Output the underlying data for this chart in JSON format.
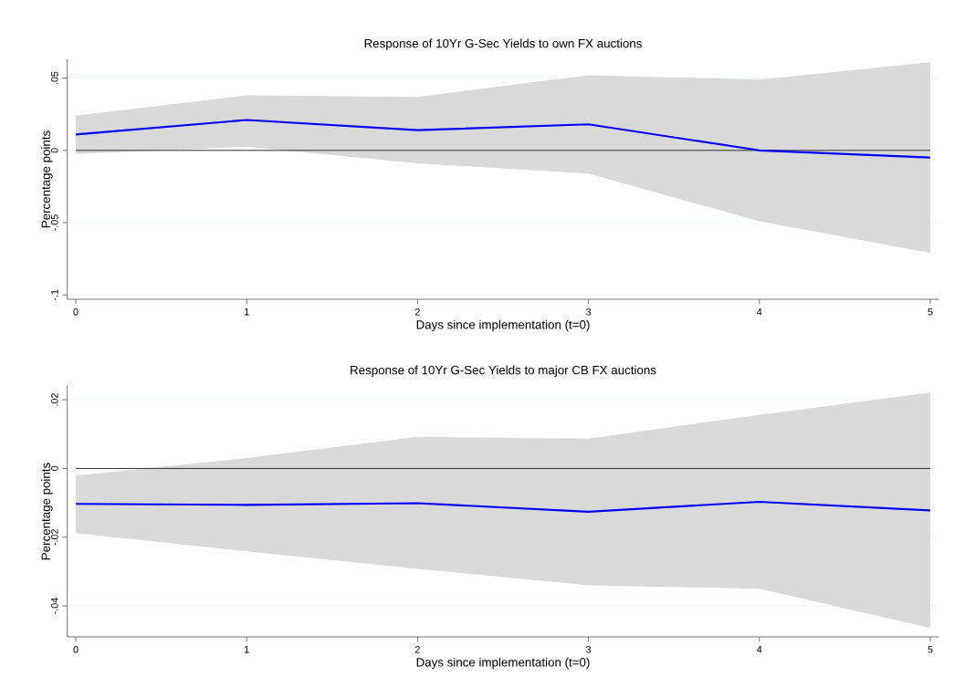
{
  "chart_data": [
    {
      "type": "line",
      "title": "Response of 10Yr G-Sec Yields to own FX auctions",
      "xlabel": "Days since implementation (t=0)",
      "ylabel": "Percentage points",
      "x": [
        0,
        1,
        2,
        3,
        4,
        5
      ],
      "xlim": [
        -0.05,
        5.05
      ],
      "xticks": [
        0,
        1,
        2,
        3,
        4,
        5
      ],
      "ylim": [
        -0.103,
        0.063
      ],
      "yticks": [
        {
          "value": -0.1,
          "label": "-.1"
        },
        {
          "value": -0.05,
          "label": "-.05"
        },
        0,
        {
          "value": 0.05,
          "label": ".05"
        }
      ],
      "grid": "y",
      "series": [
        {
          "color": "#0000ff",
          "values": [
            0.011,
            0.021,
            0.014,
            0.018,
            0.0,
            -0.005
          ],
          "lower": [
            -0.0025,
            0.0025,
            -0.009,
            -0.016,
            -0.049,
            -0.071
          ],
          "upper": [
            0.024,
            0.038,
            0.037,
            0.052,
            0.049,
            0.061
          ]
        }
      ],
      "ref_lines": [
        {
          "axis": "y",
          "value": 0,
          "color": "#000000"
        }
      ]
    },
    {
      "type": "line",
      "title": "Response of 10Yr G-Sec Yields to major CB FX auctions",
      "xlabel": "Days since implementation (t=0)",
      "ylabel": "Percentage points",
      "x": [
        0,
        1,
        2,
        3,
        4,
        5
      ],
      "xlim": [
        -0.05,
        5.05
      ],
      "xticks": [
        0,
        1,
        2,
        3,
        4,
        5
      ],
      "ylim": [
        -0.049,
        0.024
      ],
      "yticks": [
        {
          "value": -0.04,
          "label": "-.04"
        },
        {
          "value": -0.02,
          "label": "-.02"
        },
        0,
        {
          "value": 0.02,
          "label": ".02"
        }
      ],
      "grid": "y",
      "series": [
        {
          "color": "#0000ff",
          "values": [
            -0.0103,
            -0.0106,
            -0.0101,
            -0.0126,
            -0.0097,
            -0.0122
          ],
          "lower": [
            -0.0188,
            -0.0241,
            -0.0292,
            -0.034,
            -0.035,
            -0.0464
          ],
          "upper": [
            -0.0021,
            0.003,
            0.0092,
            0.0087,
            0.0156,
            0.0221
          ]
        }
      ],
      "ref_lines": [
        {
          "axis": "y",
          "value": 0,
          "color": "#000000"
        }
      ]
    }
  ]
}
